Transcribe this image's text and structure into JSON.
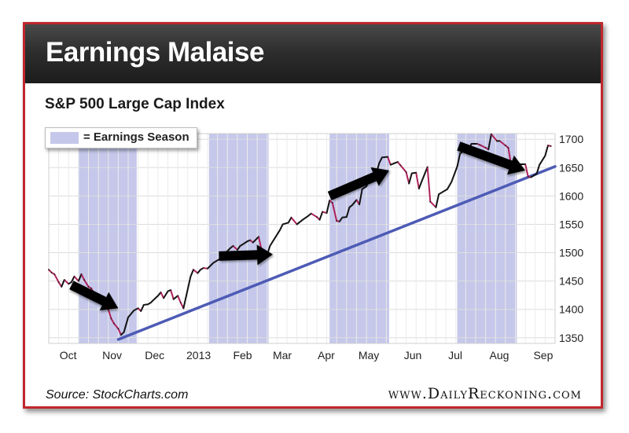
{
  "header": {
    "title": "Earnings Malaise",
    "subtitle": "S&P 500 Large Cap Index"
  },
  "footer": {
    "source": "Source: StockCharts.com",
    "brand": "www.DailyReckoning.com"
  },
  "legend": {
    "label": "= Earnings Season",
    "swatch_color": "#c5c8ea"
  },
  "colors": {
    "frame": "#c0272d",
    "trendline": "#4d5bb5",
    "up_segment": "#111111",
    "down_segment": "#b0205a",
    "shade": "#c5c8ea"
  },
  "chart_data": {
    "type": "line",
    "title": "S&P 500 Large Cap Index",
    "xlabel": "",
    "ylabel": "",
    "ylim": [
      1340,
      1710
    ],
    "xlim": [
      "2012-09-24",
      "2013-09-16"
    ],
    "y_axis_position": "right",
    "grid": true,
    "legend_position": "top-left",
    "yticks": [
      1350,
      1400,
      1450,
      1500,
      1550,
      1600,
      1650,
      1700
    ],
    "xticks": [
      {
        "label": "Oct",
        "date": "2012-10-01"
      },
      {
        "label": "Nov",
        "date": "2012-11-01"
      },
      {
        "label": "Dec",
        "date": "2012-12-01"
      },
      {
        "label": "2013",
        "date": "2013-01-01"
      },
      {
        "label": "Feb",
        "date": "2013-02-01"
      },
      {
        "label": "Mar",
        "date": "2013-03-01"
      },
      {
        "label": "Apr",
        "date": "2013-04-01"
      },
      {
        "label": "May",
        "date": "2013-05-01"
      },
      {
        "label": "Jun",
        "date": "2013-06-01"
      },
      {
        "label": "Jul",
        "date": "2013-07-01"
      },
      {
        "label": "Aug",
        "date": "2013-08-01"
      },
      {
        "label": "Sep",
        "date": "2013-09-01"
      }
    ],
    "shaded_regions": [
      {
        "name": "Earnings Season",
        "start": "2012-10-15",
        "end": "2012-11-25"
      },
      {
        "name": "Earnings Season",
        "start": "2013-01-15",
        "end": "2013-02-26"
      },
      {
        "name": "Earnings Season",
        "start": "2013-04-10",
        "end": "2013-05-22"
      },
      {
        "name": "Earnings Season",
        "start": "2013-07-09",
        "end": "2013-08-20"
      }
    ],
    "series": [
      {
        "name": "",
        "points": [
          [
            "2012-09-24",
            1470
          ],
          [
            "2012-09-26",
            1465
          ],
          [
            "2012-09-28",
            1462
          ],
          [
            "2012-10-01",
            1448
          ],
          [
            "2012-10-03",
            1440
          ],
          [
            "2012-10-05",
            1452
          ],
          [
            "2012-10-08",
            1445
          ],
          [
            "2012-10-10",
            1448
          ],
          [
            "2012-10-12",
            1458
          ],
          [
            "2012-10-15",
            1450
          ],
          [
            "2012-10-17",
            1462
          ],
          [
            "2012-10-19",
            1452
          ],
          [
            "2012-10-22",
            1440
          ],
          [
            "2012-10-24",
            1437
          ],
          [
            "2012-10-26",
            1428
          ],
          [
            "2012-10-29",
            1420
          ],
          [
            "2012-10-31",
            1413
          ],
          [
            "2012-11-02",
            1415
          ],
          [
            "2012-11-05",
            1400
          ],
          [
            "2012-11-07",
            1384
          ],
          [
            "2012-11-09",
            1375
          ],
          [
            "2012-11-12",
            1366
          ],
          [
            "2012-11-14",
            1355
          ],
          [
            "2012-11-16",
            1360
          ],
          [
            "2012-11-19",
            1386
          ],
          [
            "2012-11-21",
            1392
          ],
          [
            "2012-11-23",
            1398
          ],
          [
            "2012-11-26",
            1402
          ],
          [
            "2012-11-28",
            1397
          ],
          [
            "2012-11-30",
            1408
          ],
          [
            "2012-12-03",
            1409
          ],
          [
            "2012-12-05",
            1412
          ],
          [
            "2012-12-07",
            1417
          ],
          [
            "2012-12-10",
            1424
          ],
          [
            "2012-12-12",
            1430
          ],
          [
            "2012-12-14",
            1420
          ],
          [
            "2012-12-17",
            1432
          ],
          [
            "2012-12-19",
            1434
          ],
          [
            "2012-12-21",
            1418
          ],
          [
            "2012-12-24",
            1424
          ],
          [
            "2012-12-26",
            1412
          ],
          [
            "2012-12-28",
            1402
          ],
          [
            "2013-01-02",
            1458
          ],
          [
            "2013-01-04",
            1470
          ],
          [
            "2013-01-07",
            1464
          ],
          [
            "2013-01-09",
            1470
          ],
          [
            "2013-01-11",
            1473
          ],
          [
            "2013-01-14",
            1472
          ],
          [
            "2013-01-16",
            1477
          ],
          [
            "2013-01-18",
            1482
          ],
          [
            "2013-01-22",
            1488
          ],
          [
            "2013-01-24",
            1494
          ],
          [
            "2013-01-28",
            1503
          ],
          [
            "2013-01-30",
            1508
          ],
          [
            "2013-02-01",
            1512
          ],
          [
            "2013-02-04",
            1505
          ],
          [
            "2013-02-06",
            1512
          ],
          [
            "2013-02-08",
            1515
          ],
          [
            "2013-02-11",
            1520
          ],
          [
            "2013-02-13",
            1522
          ],
          [
            "2013-02-15",
            1518
          ],
          [
            "2013-02-19",
            1528
          ],
          [
            "2013-02-21",
            1505
          ],
          [
            "2013-02-25",
            1496
          ],
          [
            "2013-02-27",
            1512
          ],
          [
            "2013-03-01",
            1520
          ],
          [
            "2013-03-04",
            1532
          ],
          [
            "2013-03-06",
            1540
          ],
          [
            "2013-03-08",
            1550
          ],
          [
            "2013-03-12",
            1553
          ],
          [
            "2013-03-14",
            1562
          ],
          [
            "2013-03-18",
            1550
          ],
          [
            "2013-03-20",
            1554
          ],
          [
            "2013-03-22",
            1558
          ],
          [
            "2013-03-26",
            1565
          ],
          [
            "2013-03-28",
            1569
          ],
          [
            "2013-04-01",
            1563
          ],
          [
            "2013-04-03",
            1558
          ],
          [
            "2013-04-05",
            1572
          ],
          [
            "2013-04-08",
            1570
          ],
          [
            "2013-04-10",
            1592
          ],
          [
            "2013-04-12",
            1588
          ],
          [
            "2013-04-15",
            1556
          ],
          [
            "2013-04-17",
            1555
          ],
          [
            "2013-04-19",
            1562
          ],
          [
            "2013-04-22",
            1563
          ],
          [
            "2013-04-24",
            1580
          ],
          [
            "2013-04-26",
            1584
          ],
          [
            "2013-04-29",
            1593
          ],
          [
            "2013-05-01",
            1585
          ],
          [
            "2013-05-03",
            1612
          ],
          [
            "2013-05-06",
            1617
          ],
          [
            "2013-05-08",
            1630
          ],
          [
            "2013-05-10",
            1635
          ],
          [
            "2013-05-13",
            1640
          ],
          [
            "2013-05-15",
            1658
          ],
          [
            "2013-05-17",
            1668
          ],
          [
            "2013-05-21",
            1669
          ],
          [
            "2013-05-23",
            1655
          ],
          [
            "2013-05-28",
            1660
          ],
          [
            "2013-05-30",
            1654
          ],
          [
            "2013-06-03",
            1642
          ],
          [
            "2013-06-05",
            1622
          ],
          [
            "2013-06-07",
            1640
          ],
          [
            "2013-06-10",
            1641
          ],
          [
            "2013-06-12",
            1613
          ],
          [
            "2013-06-14",
            1626
          ],
          [
            "2013-06-18",
            1651
          ],
          [
            "2013-06-20",
            1590
          ],
          [
            "2013-06-24",
            1580
          ],
          [
            "2013-06-26",
            1603
          ],
          [
            "2013-06-28",
            1606
          ],
          [
            "2013-07-02",
            1612
          ],
          [
            "2013-07-05",
            1625
          ],
          [
            "2013-07-09",
            1652
          ],
          [
            "2013-07-11",
            1675
          ],
          [
            "2013-07-15",
            1682
          ],
          [
            "2013-07-17",
            1680
          ],
          [
            "2013-07-19",
            1692
          ],
          [
            "2013-07-23",
            1692
          ],
          [
            "2013-07-25",
            1690
          ],
          [
            "2013-07-29",
            1685
          ],
          [
            "2013-07-31",
            1682
          ],
          [
            "2013-08-02",
            1709
          ],
          [
            "2013-08-06",
            1697
          ],
          [
            "2013-08-08",
            1697
          ],
          [
            "2013-08-12",
            1689
          ],
          [
            "2013-08-14",
            1685
          ],
          [
            "2013-08-16",
            1655
          ],
          [
            "2013-08-20",
            1652
          ],
          [
            "2013-08-22",
            1656
          ],
          [
            "2013-08-26",
            1656
          ],
          [
            "2013-08-28",
            1634
          ],
          [
            "2013-08-30",
            1633
          ],
          [
            "2013-09-03",
            1639
          ],
          [
            "2013-09-05",
            1655
          ],
          [
            "2013-09-09",
            1671
          ],
          [
            "2013-09-11",
            1689
          ],
          [
            "2013-09-13",
            1688
          ]
        ]
      }
    ],
    "trendline": {
      "from": [
        "2012-11-12",
        1347
      ],
      "to": [
        "2013-09-16",
        1652
      ]
    },
    "arrows": [
      {
        "from": [
          "2012-10-10",
          1443
        ],
        "to": [
          "2012-11-12",
          1402
        ]
      },
      {
        "from": [
          "2013-01-22",
          1494
        ],
        "to": [
          "2013-03-01",
          1497
        ]
      },
      {
        "from": [
          "2013-04-10",
          1600
        ],
        "to": [
          "2013-05-22",
          1645
        ]
      },
      {
        "from": [
          "2013-07-10",
          1688
        ],
        "to": [
          "2013-08-26",
          1645
        ]
      }
    ]
  }
}
